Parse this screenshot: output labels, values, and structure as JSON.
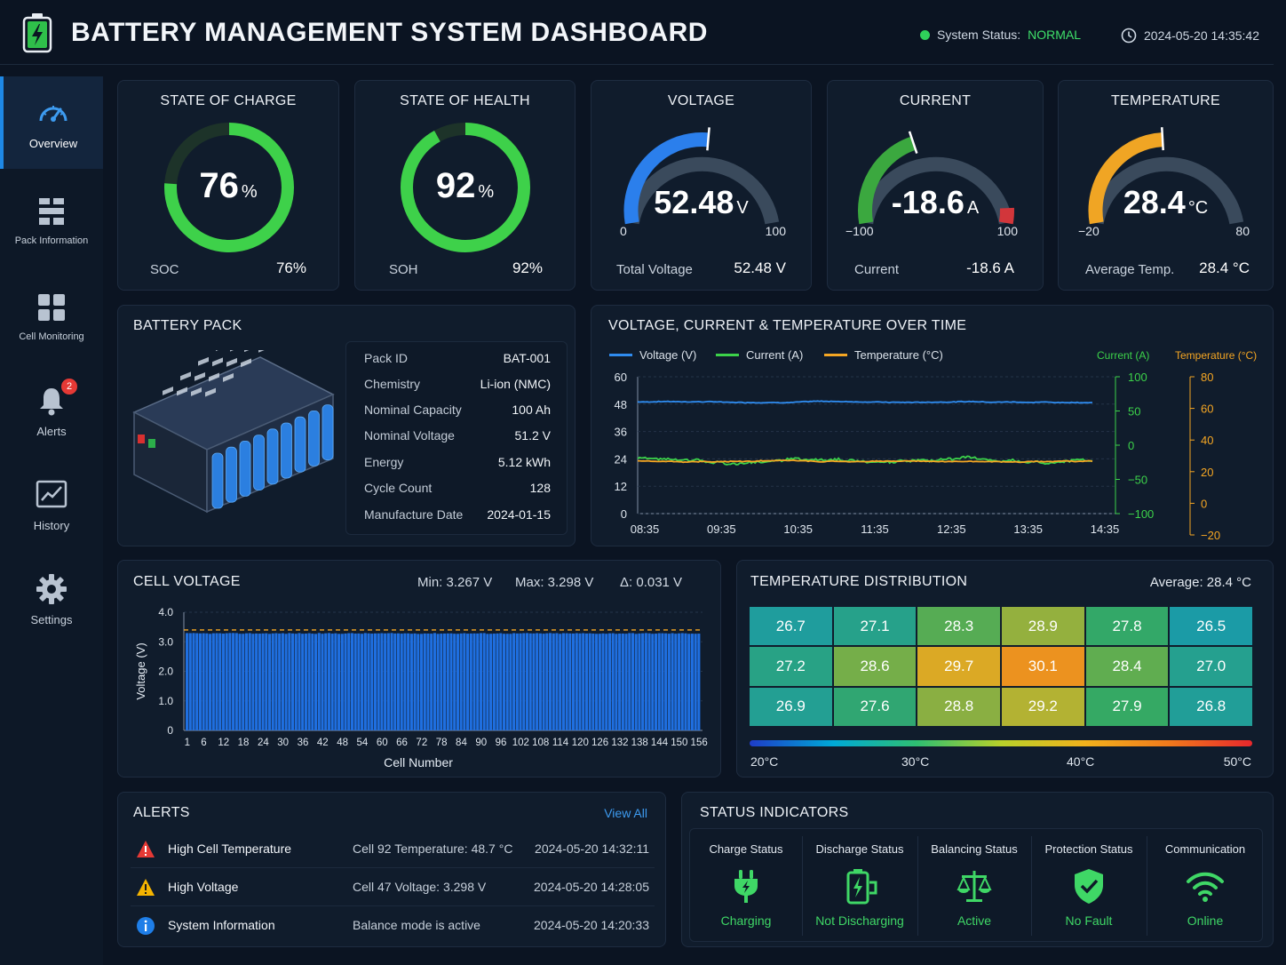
{
  "header": {
    "title": "BATTERY MANAGEMENT SYSTEM DASHBOARD",
    "status_label": "System Status:",
    "status_value": "NORMAL",
    "datetime": "2024-05-20 14:35:42"
  },
  "sidebar": {
    "items": [
      {
        "label": "Overview",
        "icon": "gauge-icon"
      },
      {
        "label": "Pack Information",
        "icon": "pack-icon"
      },
      {
        "label": "Cell Monitoring",
        "icon": "grid-icon"
      },
      {
        "label": "Alerts",
        "icon": "bell-icon",
        "badge": "2"
      },
      {
        "label": "History",
        "icon": "chart-icon"
      },
      {
        "label": "Settings",
        "icon": "gear-icon"
      }
    ]
  },
  "gauges": {
    "soc": {
      "title": "STATE OF CHARGE",
      "value": "76",
      "unit": "%",
      "foot_label": "SOC",
      "foot_value": "76",
      "foot_unit": "%",
      "fraction": 0.76
    },
    "soh": {
      "title": "STATE OF HEALTH",
      "value": "92",
      "unit": "%",
      "foot_label": "SOH",
      "foot_value": "92",
      "foot_unit": "%",
      "fraction": 0.92
    },
    "voltage": {
      "title": "VOLTAGE",
      "value": "52.48",
      "unit": "V",
      "min": "0",
      "max": "100",
      "foot_label": "Total Voltage",
      "foot_value": "52.48 V",
      "reading": 52.48,
      "range": [
        0,
        100
      ]
    },
    "current": {
      "title": "CURRENT",
      "value": "-18.6",
      "unit": "A",
      "min": "−100",
      "max": "100",
      "foot_label": "Current",
      "foot_value": "-18.6 A",
      "reading": -18.6,
      "range": [
        -100,
        100
      ]
    },
    "temperature": {
      "title": "TEMPERATURE",
      "value": "28.4",
      "unit": "°C",
      "min": "−20",
      "max": "80",
      "foot_label": "Average Temp.",
      "foot_value": "28.4 °C",
      "reading": 28.4,
      "range": [
        -20,
        80
      ]
    }
  },
  "pack": {
    "title": "BATTERY PACK",
    "rows": [
      {
        "k": "Pack ID",
        "v": "BAT-001"
      },
      {
        "k": "Chemistry",
        "v": "Li-ion (NMC)"
      },
      {
        "k": "Nominal Capacity",
        "v": "100 Ah"
      },
      {
        "k": "Nominal Voltage",
        "v": "51.2 V"
      },
      {
        "k": "Energy",
        "v": "5.12 kWh"
      },
      {
        "k": "Cycle Count",
        "v": "128"
      },
      {
        "k": "Manufacture Date",
        "v": "2024-01-15"
      }
    ]
  },
  "chart_data": [
    {
      "type": "line",
      "title": "VOLTAGE, CURRENT & TEMPERATURE OVER TIME",
      "x": [
        "08:35",
        "09:35",
        "10:35",
        "11:35",
        "12:35",
        "13:35",
        "14:35"
      ],
      "left_axis": {
        "ticks": [
          "60",
          "48",
          "36",
          "24",
          "12",
          "0"
        ],
        "range": [
          0,
          60
        ]
      },
      "current_axis": {
        "label": "Current (A)",
        "ticks": [
          "100",
          "50",
          "0",
          "−50",
          "−100"
        ],
        "range": [
          -100,
          100
        ]
      },
      "temp_axis": {
        "label": "Temperature (°C)",
        "ticks": [
          "80",
          "60",
          "40",
          "20",
          "0",
          "−20"
        ],
        "range": [
          -20,
          80
        ]
      },
      "series": [
        {
          "name": "Voltage (V)",
          "color": "#2f8cf0",
          "axis": "left",
          "base": 49,
          "amp": 0.5
        },
        {
          "name": "Current (A)",
          "color": "#3cd24a",
          "axis": "current",
          "base": -22,
          "amp": 6
        },
        {
          "name": "Temperature (°C)",
          "color": "#f5a623",
          "axis": "temp",
          "base": 26.5,
          "amp": 0.8
        }
      ]
    },
    {
      "type": "bar",
      "title": "CELL VOLTAGE",
      "xlabel": "Cell Number",
      "ylabel": "Voltage (V)",
      "ylim": [
        0,
        4.0
      ],
      "y_ticks": [
        "4.0",
        "3.0",
        "2.0",
        "1.0",
        "0"
      ],
      "x_ticks": [
        "1",
        "6",
        "12",
        "18",
        "24",
        "30",
        "36",
        "42",
        "48",
        "54",
        "60",
        "66",
        "72",
        "78",
        "84",
        "90",
        "96",
        "102",
        "108",
        "114",
        "120",
        "126",
        "132",
        "138",
        "144",
        "150",
        "156"
      ],
      "cell_count": 156,
      "v_min": 3.267,
      "v_max": 3.298,
      "ref_line": 3.4
    }
  ],
  "cell_voltage": {
    "title": "CELL VOLTAGE",
    "min": "Min:  3.267 V",
    "max": "Max:  3.298 V",
    "delta": "Δ:  0.031 V"
  },
  "temp_dist": {
    "title": "TEMPERATURE DISTRIBUTION",
    "average": "Average: 28.4 °C",
    "cells": [
      [
        "26.7",
        "27.1",
        "28.3",
        "28.9",
        "27.8",
        "26.5"
      ],
      [
        "27.2",
        "28.6",
        "29.7",
        "30.1",
        "28.4",
        "27.0"
      ],
      [
        "26.9",
        "27.6",
        "28.8",
        "29.2",
        "27.9",
        "26.8"
      ]
    ],
    "scale": [
      "20°C",
      "30°C",
      "40°C",
      "50°C"
    ]
  },
  "alerts": {
    "title": "ALERTS",
    "view_all": "View All",
    "items": [
      {
        "level": "critical",
        "title": "High Cell Temperature",
        "detail": "Cell 92 Temperature: 48.7 °C",
        "time": "2024-05-20 14:32:11"
      },
      {
        "level": "warning",
        "title": "High Voltage",
        "detail": "Cell 47 Voltage: 3.298 V",
        "time": "2024-05-20 14:28:05"
      },
      {
        "level": "info",
        "title": "System Information",
        "detail": "Balance mode is active",
        "time": "2024-05-20 14:20:33"
      }
    ]
  },
  "status_indicators": {
    "title": "STATUS INDICATORS",
    "items": [
      {
        "label": "Charge Status",
        "value": "Charging",
        "icon": "plug-icon"
      },
      {
        "label": "Discharge Status",
        "value": "Not Discharging",
        "icon": "battery-icon"
      },
      {
        "label": "Balancing Status",
        "value": "Active",
        "icon": "scale-icon"
      },
      {
        "label": "Protection Status",
        "value": "No Fault",
        "icon": "shield-check-icon"
      },
      {
        "label": "Communication",
        "value": "Online",
        "icon": "wifi-icon"
      }
    ]
  }
}
